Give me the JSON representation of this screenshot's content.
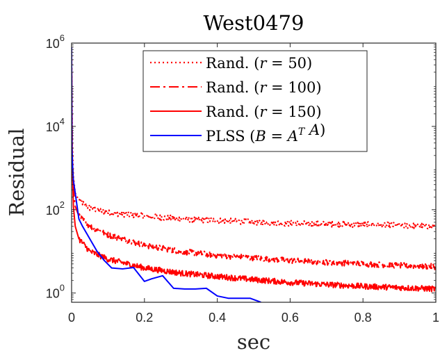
{
  "chart_data": {
    "type": "line",
    "title": "West0479",
    "xlabel": "sec",
    "ylabel": "Residual",
    "xlim": [
      0,
      1
    ],
    "ylim": [
      0.6,
      1000000
    ],
    "yscale": "log",
    "grid": false,
    "legend_position": "top-right",
    "x_ticks": [
      {
        "value": 0,
        "label": "0"
      },
      {
        "value": 0.2,
        "label": "0.2"
      },
      {
        "value": 0.4,
        "label": "0.4"
      },
      {
        "value": 0.6,
        "label": "0.6"
      },
      {
        "value": 0.8,
        "label": "0.8"
      },
      {
        "value": 1,
        "label": "1"
      }
    ],
    "y_ticks": [
      {
        "value": 1,
        "base": "10",
        "exp": "0"
      },
      {
        "value": 100,
        "base": "10",
        "exp": "2"
      },
      {
        "value": 10000,
        "base": "10",
        "exp": "4"
      },
      {
        "value": 1000000,
        "base": "10",
        "exp": "6"
      }
    ],
    "series": [
      {
        "name": "Rand. (r = 50)",
        "color": "#ff0000",
        "style": "dotted",
        "x": [
          0,
          0.002,
          0.005,
          0.01,
          0.02,
          0.05,
          0.1,
          0.2,
          0.3,
          0.4,
          0.5,
          0.6,
          0.7,
          0.8,
          0.9,
          1.0
        ],
        "y": [
          800000,
          4000,
          600,
          250,
          170,
          110,
          85,
          70,
          60,
          55,
          50,
          47,
          45,
          44,
          42,
          40
        ],
        "noise": 0.07
      },
      {
        "name": "Rand. (r = 100)",
        "color": "#ff0000",
        "style": "dashdot",
        "x": [
          0,
          0.002,
          0.005,
          0.01,
          0.02,
          0.05,
          0.1,
          0.2,
          0.3,
          0.4,
          0.5,
          0.6,
          0.7,
          0.8,
          0.9,
          1.0
        ],
        "y": [
          500000,
          2000,
          300,
          120,
          70,
          40,
          25,
          14,
          10,
          8,
          7,
          6,
          5.5,
          5,
          4.6,
          4.3
        ],
        "noise": 0.07
      },
      {
        "name": "Rand. (r = 150)",
        "color": "#ff0000",
        "style": "solid",
        "x": [
          0,
          0.002,
          0.005,
          0.01,
          0.02,
          0.05,
          0.1,
          0.2,
          0.3,
          0.4,
          0.5,
          0.6,
          0.7,
          0.8,
          0.9,
          1.0
        ],
        "y": [
          300000,
          1000,
          120,
          40,
          20,
          10,
          6.5,
          4,
          3,
          2.5,
          2.1,
          1.8,
          1.6,
          1.45,
          1.35,
          1.25
        ],
        "noise": 0.07
      },
      {
        "name": "PLSS (B = A^T A)",
        "color": "#0000ff",
        "style": "solid",
        "x": [
          0,
          0.001,
          0.003,
          0.005,
          0.01,
          0.02,
          0.03,
          0.05,
          0.07,
          0.09,
          0.11,
          0.14,
          0.17,
          0.2,
          0.22,
          0.25,
          0.28,
          0.31,
          0.34,
          0.37,
          0.4,
          0.43,
          0.46,
          0.49,
          0.52
        ],
        "y": [
          800000,
          3000,
          1000,
          500,
          250,
          60,
          40,
          20,
          10,
          6,
          4,
          3.8,
          4.1,
          1.9,
          2.2,
          2.6,
          1.3,
          1.25,
          1.25,
          1.3,
          0.85,
          0.75,
          0.75,
          0.75,
          0.6
        ],
        "noise": 0
      }
    ]
  }
}
